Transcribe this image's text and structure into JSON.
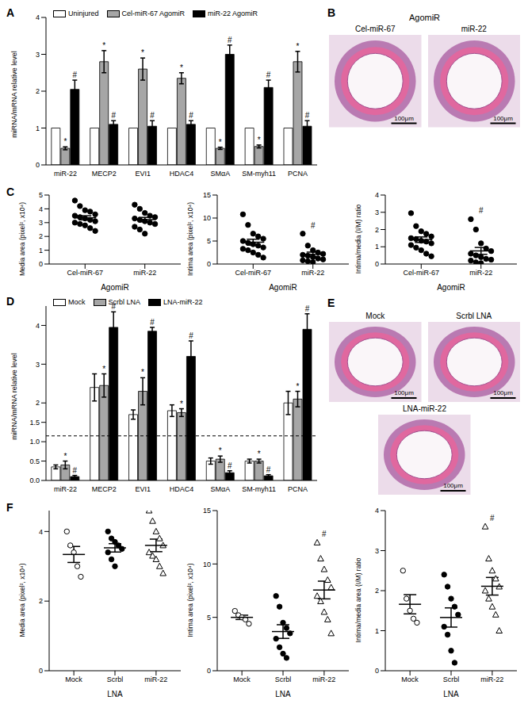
{
  "chart_data": [
    {
      "panel": "A",
      "type": "bar",
      "ylabel": "miRNA/mRNA relative level",
      "categories": [
        "miR-22",
        "MECP2",
        "EVI1",
        "HDAC4",
        "SMαA",
        "SM-myh11",
        "PCNA"
      ],
      "series": [
        {
          "name": "Uninjured",
          "color": "#ffffff",
          "values": [
            1,
            1,
            1,
            1,
            1,
            1,
            1
          ]
        },
        {
          "name": "Cel-miR-67 AgomiR",
          "color": "#a6a6a6",
          "values": [
            0.45,
            2.8,
            2.6,
            2.35,
            0.45,
            0.5,
            2.8
          ],
          "errors": [
            0.04,
            0.3,
            0.3,
            0.15,
            0.03,
            0.04,
            0.28
          ],
          "significance": [
            "*",
            "*",
            "*",
            "*",
            "*",
            "*",
            "*"
          ]
        },
        {
          "name": "miR-22 AgomiR",
          "color": "#000000",
          "values": [
            2.05,
            1.1,
            1.05,
            1.1,
            3.0,
            2.1,
            1.05
          ],
          "errors": [
            0.25,
            0.1,
            0.15,
            0.1,
            0.25,
            0.2,
            0.15
          ],
          "significance": [
            "#",
            "#",
            "#",
            "#",
            "#",
            "#",
            "#"
          ]
        }
      ],
      "ylim": [
        0,
        4
      ],
      "yticks": [
        0,
        1,
        2,
        3,
        4
      ],
      "legend": "top"
    },
    {
      "panel": "B",
      "type": "image",
      "title": "AgomiR",
      "images": [
        {
          "label": "Cel-miR-67",
          "scale_bar": "100μm"
        },
        {
          "label": "miR-22",
          "scale_bar": "100μm"
        }
      ]
    },
    {
      "panel": "C",
      "type": "scatter",
      "ylabel": "Media area (pixel², x10⁴)",
      "xlabel": "AgomiR",
      "categories": [
        "Cel-miR-67",
        "miR-22"
      ],
      "groups": [
        {
          "values": [
            4.6,
            4.2,
            3.9,
            3.8,
            3.6,
            3.5,
            3.4,
            3.3,
            3.2,
            3.1,
            3.0,
            2.9,
            2.8,
            2.6,
            2.4
          ],
          "mean": 3.35,
          "sem": 0.15,
          "marker": "circle",
          "color": "#000000"
        },
        {
          "values": [
            4.3,
            4.0,
            3.7,
            3.5,
            3.4,
            3.3,
            3.2,
            3.1,
            3.0,
            2.9,
            2.7,
            2.5,
            2.2
          ],
          "mean": 3.22,
          "sem": 0.16,
          "marker": "circle",
          "color": "#000000"
        }
      ],
      "ylim": [
        0,
        5
      ],
      "yticks": [
        0,
        1,
        2,
        3,
        4,
        5
      ]
    },
    {
      "type": "scatter",
      "ylabel": "Intima area (pixel², x10⁴)",
      "xlabel": "AgomiR",
      "categories": [
        "Cel-miR-67",
        "miR-22"
      ],
      "groups": [
        {
          "values": [
            10.8,
            8.5,
            6.6,
            6.0,
            5.5,
            5.0,
            4.6,
            4.3,
            4.0,
            3.6,
            3.3,
            3.0,
            2.5,
            2.0,
            1.4
          ],
          "mean": 4.74,
          "sem": 0.65,
          "marker": "circle",
          "color": "#000000"
        },
        {
          "values": [
            6.6,
            4.0,
            3.0,
            2.5,
            2.2,
            2.0,
            1.8,
            1.5,
            1.2,
            1.0,
            0.8,
            0.6,
            0.4
          ],
          "mean": 2.12,
          "sem": 0.47,
          "marker": "circle",
          "color": "#000000",
          "significance": "#"
        }
      ],
      "ylim": [
        0,
        15
      ],
      "yticks": [
        0,
        5,
        10,
        15
      ]
    },
    {
      "type": "scatter",
      "ylabel": "Intima/media (I/M) ratio",
      "xlabel": "AgomiR",
      "categories": [
        "Cel-miR-67",
        "miR-22"
      ],
      "groups": [
        {
          "values": [
            2.95,
            2.2,
            1.9,
            1.75,
            1.6,
            1.5,
            1.45,
            1.35,
            1.3,
            1.2,
            1.1,
            0.95,
            0.8,
            0.6,
            0.45
          ],
          "mean": 1.41,
          "sem": 0.16,
          "marker": "circle",
          "color": "#000000"
        },
        {
          "values": [
            2.6,
            2.0,
            1.2,
            0.9,
            0.75,
            0.6,
            0.5,
            0.4,
            0.3,
            0.25,
            0.2,
            0.1,
            0.05
          ],
          "mean": 0.76,
          "sem": 0.2,
          "marker": "circle",
          "color": "#000000",
          "significance": "#"
        }
      ],
      "ylim": [
        0,
        4
      ],
      "yticks": [
        0,
        1,
        2,
        3,
        4
      ]
    },
    {
      "panel": "D",
      "type": "bar",
      "ylabel": "miRNA/mRNA relative level",
      "categories": [
        "miR-22",
        "MECP2",
        "EVI1",
        "HDAC4",
        "SMαA",
        "SM-myh11",
        "PCNA"
      ],
      "series": [
        {
          "name": "Mock",
          "color": "#ffffff",
          "values": [
            0.35,
            2.4,
            1.7,
            1.8,
            0.5,
            0.5,
            2.0
          ],
          "errors": [
            0.05,
            0.35,
            0.12,
            0.15,
            0.08,
            0.05,
            0.3
          ]
        },
        {
          "name": "Scrbl LNA",
          "color": "#a6a6a6",
          "values": [
            0.4,
            2.45,
            2.3,
            1.75,
            0.55,
            0.5,
            2.1
          ],
          "errors": [
            0.1,
            0.3,
            0.35,
            0.1,
            0.08,
            0.05,
            0.2
          ],
          "significance": [
            "*",
            "*",
            "*",
            "*",
            "*",
            "*",
            "*"
          ]
        },
        {
          "name": "LNA-miR-22",
          "color": "#000000",
          "values": [
            0.1,
            3.95,
            3.85,
            3.2,
            0.2,
            0.12,
            3.9
          ],
          "errors": [
            0.03,
            0.4,
            0.1,
            0.4,
            0.05,
            0.03,
            0.4
          ],
          "significance": [
            "#",
            "#",
            "#",
            "#",
            "#",
            "#",
            "#"
          ]
        }
      ],
      "ylim": [
        0,
        4.5
      ],
      "yticks": [
        {
          "value": 0,
          "label": "0.0"
        },
        {
          "value": 0.5,
          "label": "0.5"
        },
        {
          "value": 1,
          "label": "1.0"
        },
        {
          "value": 1.5,
          "label": "1.5"
        },
        2,
        3,
        4
      ],
      "legend": "top",
      "reference_line": {
        "value": 1.15,
        "line_style": "dashed"
      }
    },
    {
      "panel": "E",
      "type": "image",
      "images": [
        {
          "label": "Mock",
          "scale_bar": "100μm"
        },
        {
          "label": "Scrbl LNA",
          "scale_bar": "100μm"
        },
        {
          "label": "LNA-miR-22",
          "scale_bar": "100μm"
        }
      ]
    },
    {
      "panel": "F",
      "type": "scatter",
      "ylabel": "Media area (pixel², x10⁴)",
      "xlabel": "LNA",
      "categories": [
        "Mock",
        "Scrbl",
        "miR-22"
      ],
      "groups": [
        {
          "values": [
            4.0,
            3.6,
            3.4,
            3.0,
            2.7
          ],
          "mean": 3.34,
          "sem": 0.23,
          "marker": "circle_open",
          "color": "#000000"
        },
        {
          "values": [
            4.0,
            3.8,
            3.7,
            3.6,
            3.5,
            3.4,
            3.2,
            3.0
          ],
          "mean": 3.53,
          "sem": 0.12,
          "marker": "circle",
          "color": "#000000"
        },
        {
          "values": [
            4.6,
            4.3,
            4.0,
            3.8,
            3.6,
            3.4,
            3.3,
            3.2,
            3.0,
            2.8
          ],
          "mean": 3.6,
          "sem": 0.18,
          "marker": "triangle_open",
          "color": "#000000"
        }
      ],
      "ylim": [
        0,
        4.6
      ],
      "yticks": [
        0,
        2,
        4
      ]
    },
    {
      "type": "scatter",
      "ylabel": "Intima area (pixel², x10⁴)",
      "xlabel": "LNA",
      "categories": [
        "Mock",
        "Scrbl",
        "miR-22"
      ],
      "groups": [
        {
          "values": [
            5.6,
            5.2,
            5.0,
            4.8,
            4.4
          ],
          "mean": 5.0,
          "sem": 0.2,
          "marker": "circle_open",
          "color": "#000000"
        },
        {
          "values": [
            7.0,
            6.0,
            4.5,
            4.0,
            3.5,
            3.0,
            2.2,
            1.6,
            1.2
          ],
          "mean": 3.67,
          "sem": 0.64,
          "marker": "circle",
          "color": "#000000"
        },
        {
          "values": [
            12.0,
            10.5,
            9.5,
            8.5,
            7.8,
            7.0,
            6.5,
            5.5,
            4.8,
            3.5
          ],
          "mean": 7.56,
          "sem": 0.83,
          "marker": "triangle_open",
          "color": "#000000",
          "significance": "#"
        }
      ],
      "ylim": [
        0,
        15
      ],
      "yticks": [
        0,
        5,
        10,
        15
      ]
    },
    {
      "type": "scatter",
      "ylabel": "Intima/media area (I/M) ratio",
      "xlabel": "LNA",
      "categories": [
        "Mock",
        "Scrbl",
        "miR-22"
      ],
      "groups": [
        {
          "values": [
            2.5,
            1.8,
            1.5,
            1.3,
            1.2
          ],
          "mean": 1.66,
          "sem": 0.24,
          "marker": "circle_open",
          "color": "#000000"
        },
        {
          "values": [
            2.4,
            2.1,
            1.8,
            1.6,
            1.4,
            1.1,
            0.9,
            0.5,
            0.2
          ],
          "mean": 1.33,
          "sem": 0.24,
          "marker": "circle",
          "color": "#000000"
        },
        {
          "values": [
            3.6,
            2.8,
            2.5,
            2.3,
            2.1,
            2.0,
            1.8,
            1.6,
            1.4,
            1.0
          ],
          "mean": 2.11,
          "sem": 0.22,
          "marker": "triangle_open",
          "color": "#000000",
          "significance": "#"
        }
      ],
      "ylim": [
        0,
        4
      ],
      "yticks": [
        0,
        1,
        2,
        3,
        4
      ]
    }
  ]
}
